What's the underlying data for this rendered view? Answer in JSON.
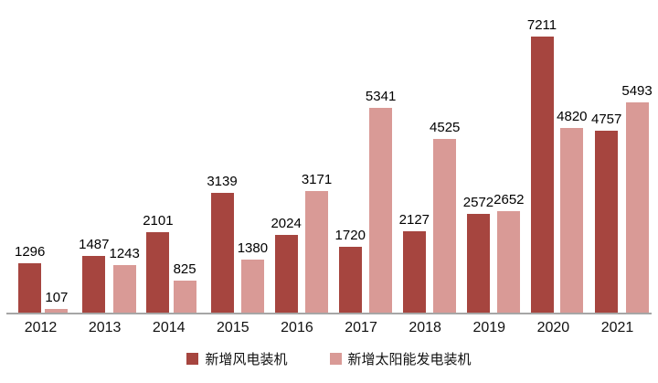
{
  "chart_data": {
    "type": "bar",
    "title": "",
    "categories": [
      "2012",
      "2013",
      "2014",
      "2015",
      "2016",
      "2017",
      "2018",
      "2019",
      "2020",
      "2021"
    ],
    "series": [
      {
        "name": "新增风电装机",
        "color": "#A6453F",
        "values": [
          1296,
          1487,
          2101,
          3139,
          2024,
          1720,
          2127,
          2572,
          7211,
          4757
        ]
      },
      {
        "name": "新增太阳能发电装机",
        "color": "#D99A96",
        "values": [
          107,
          1243,
          825,
          1380,
          3171,
          5341,
          4525,
          2652,
          4820,
          5493
        ]
      }
    ],
    "xlabel": "",
    "ylabel": "",
    "ylim": [
      0,
      7211
    ],
    "grid": false,
    "y_axis_visible": false,
    "data_labels": true,
    "legend_position": "bottom",
    "axis_line_color": "#A6A6A6",
    "text_color": "#000000",
    "background": "#FFFFFF"
  }
}
